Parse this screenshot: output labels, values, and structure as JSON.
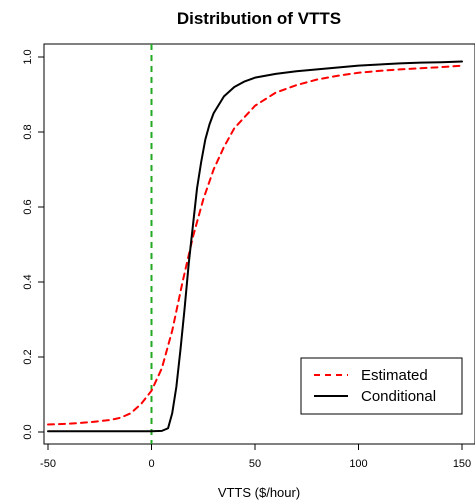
{
  "chart_data": {
    "type": "line",
    "title": "Distribution of VTTS",
    "xlabel": "VTTS ($/hour)",
    "ylabel": "",
    "xlim": [
      -50,
      150
    ],
    "ylim": [
      0,
      1
    ],
    "x_ticks": [
      -50,
      0,
      50,
      100,
      150
    ],
    "y_ticks": [
      0.0,
      0.2,
      0.4,
      0.6,
      0.8,
      1.0
    ],
    "x_tick_labels": [
      "-50",
      "0",
      "50",
      "100",
      "150"
    ],
    "y_tick_labels": [
      "0.0",
      "0.2",
      "0.4",
      "0.6",
      "0.8",
      "1.0"
    ],
    "grid": false,
    "legend_position": "bottom-right",
    "vertical_reference_line": {
      "x": 0,
      "color": "#22aa22",
      "style": "dashed"
    },
    "series": [
      {
        "name": "Estimated",
        "color": "#ff0000",
        "style": "dashed",
        "points": [
          [
            -50,
            0.02
          ],
          [
            -40,
            0.022
          ],
          [
            -30,
            0.026
          ],
          [
            -20,
            0.032
          ],
          [
            -15,
            0.038
          ],
          [
            -10,
            0.05
          ],
          [
            -5,
            0.075
          ],
          [
            0,
            0.11
          ],
          [
            5,
            0.17
          ],
          [
            10,
            0.27
          ],
          [
            15,
            0.4
          ],
          [
            20,
            0.52
          ],
          [
            25,
            0.62
          ],
          [
            30,
            0.7
          ],
          [
            35,
            0.76
          ],
          [
            40,
            0.81
          ],
          [
            50,
            0.87
          ],
          [
            60,
            0.905
          ],
          [
            70,
            0.925
          ],
          [
            80,
            0.94
          ],
          [
            90,
            0.95
          ],
          [
            100,
            0.958
          ],
          [
            110,
            0.963
          ],
          [
            120,
            0.967
          ],
          [
            130,
            0.97
          ],
          [
            140,
            0.973
          ],
          [
            150,
            0.977
          ]
        ]
      },
      {
        "name": "Conditional",
        "color": "#000000",
        "style": "solid",
        "points": [
          [
            -50,
            0.002
          ],
          [
            -10,
            0.002
          ],
          [
            0,
            0.002
          ],
          [
            5,
            0.003
          ],
          [
            8,
            0.01
          ],
          [
            10,
            0.05
          ],
          [
            12,
            0.12
          ],
          [
            14,
            0.22
          ],
          [
            16,
            0.33
          ],
          [
            18,
            0.45
          ],
          [
            20,
            0.55
          ],
          [
            22,
            0.65
          ],
          [
            24,
            0.72
          ],
          [
            26,
            0.78
          ],
          [
            28,
            0.82
          ],
          [
            30,
            0.85
          ],
          [
            35,
            0.895
          ],
          [
            40,
            0.92
          ],
          [
            45,
            0.935
          ],
          [
            50,
            0.945
          ],
          [
            60,
            0.955
          ],
          [
            70,
            0.962
          ],
          [
            80,
            0.967
          ],
          [
            90,
            0.972
          ],
          [
            100,
            0.977
          ],
          [
            110,
            0.98
          ],
          [
            120,
            0.983
          ],
          [
            130,
            0.985
          ],
          [
            140,
            0.986
          ],
          [
            150,
            0.988
          ]
        ]
      }
    ]
  }
}
